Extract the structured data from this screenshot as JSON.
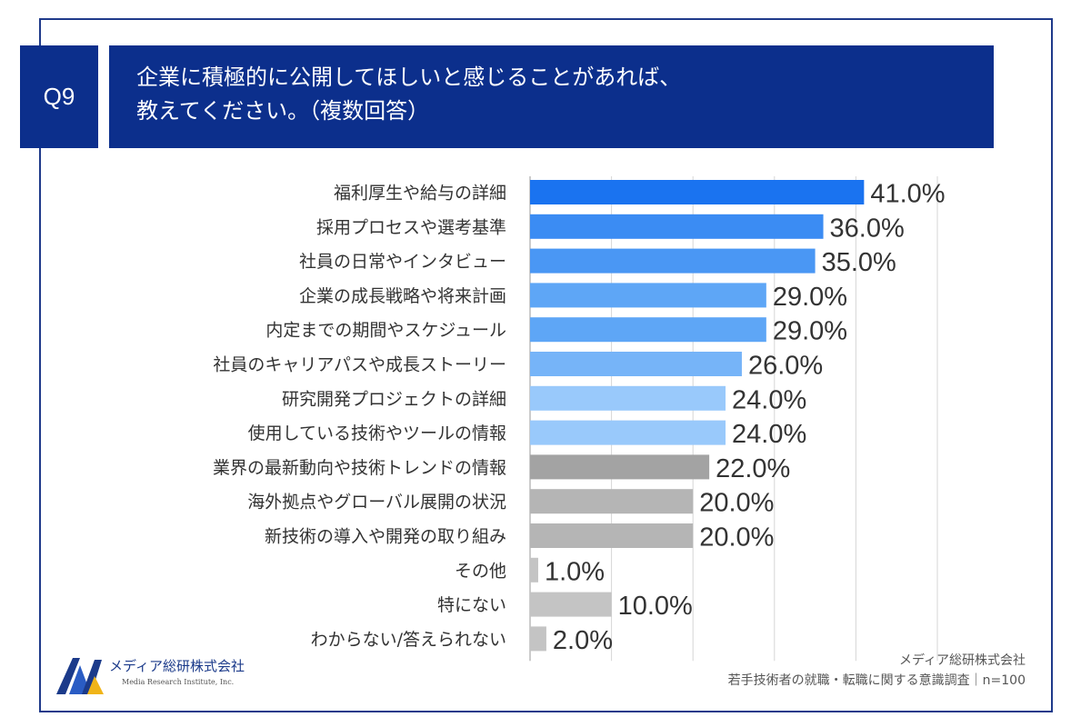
{
  "header": {
    "question_no": "Q9",
    "title_line1": "企業に積極的に公開してほしいと感じることがあれば、",
    "title_line2": "教えてください。（複数回答）"
  },
  "chart_data": {
    "type": "bar",
    "orientation": "horizontal",
    "categories": [
      "福利厚生や給与の詳細",
      "採用プロセスや選考基準",
      "社員の日常やインタビュー",
      "企業の成長戦略や将来計画",
      "内定までの期間やスケジュール",
      "社員のキャリアパスや成長ストーリー",
      "研究開発プロジェクトの詳細",
      "使用している技術やツールの情報",
      "業界の最新動向や技術トレンドの情報",
      "海外拠点やグローバル展開の状況",
      "新技術の導入や開発の取り組み",
      "その他",
      "特にない",
      "わからない/答えられない"
    ],
    "values": [
      41.0,
      36.0,
      35.0,
      29.0,
      29.0,
      26.0,
      24.0,
      24.0,
      22.0,
      20.0,
      20.0,
      1.0,
      10.0,
      2.0
    ],
    "value_labels": [
      "41.0%",
      "36.0%",
      "35.0%",
      "29.0%",
      "29.0%",
      "26.0%",
      "24.0%",
      "24.0%",
      "22.0%",
      "20.0%",
      "20.0%",
      "1.0%",
      "10.0%",
      "2.0%"
    ],
    "colors": [
      "#1a73f0",
      "#3b8cf3",
      "#4a97f4",
      "#5ea6f6",
      "#5ea6f6",
      "#76b4f8",
      "#99c9fb",
      "#99c9fb",
      "#a3a3a3",
      "#b5b5b5",
      "#b5b5b5",
      "#c4c4c4",
      "#c4c4c4",
      "#c4c4c4"
    ],
    "xlim": [
      0,
      50
    ],
    "grid": true
  },
  "footer": {
    "company_logo_text": "メディア総研株式会社",
    "company_logo_sub": "Media Research Institute, Inc.",
    "source_line1": "メディア総研株式会社",
    "source_line2": "若手技術者の就職・転職に関する意識調査｜n=100"
  },
  "colors": {
    "brand_navy": "#0c2f8c",
    "frame": "#1f3a8a",
    "logo_gold": "#f0b418"
  }
}
